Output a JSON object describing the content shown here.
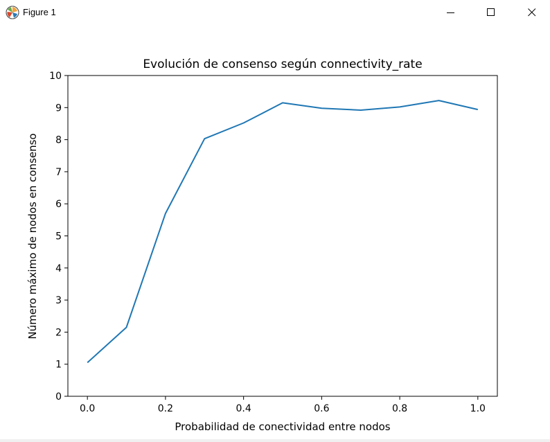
{
  "window": {
    "title": "Figure 1",
    "icons": {
      "app": "matplotlib-icon",
      "minimize": "minimize-icon",
      "maximize": "maximize-icon",
      "close": "close-icon"
    }
  },
  "chart_data": {
    "type": "line",
    "title": "Evolución de consenso según connectivity_rate",
    "xlabel": "Probabilidad de conectividad entre nodos",
    "ylabel": "Número máximo de nodos en consenso",
    "xlim": [
      -0.05,
      1.05
    ],
    "ylim": [
      0,
      10
    ],
    "x_ticks": [
      "0.0",
      "0.2",
      "0.4",
      "0.6",
      "0.8",
      "1.0"
    ],
    "y_ticks": [
      "0",
      "1",
      "2",
      "3",
      "4",
      "5",
      "6",
      "7",
      "8",
      "9",
      "10"
    ],
    "grid": false,
    "series": [
      {
        "color": "#1f77b4",
        "x": [
          0.0,
          0.1,
          0.2,
          0.3,
          0.4,
          0.5,
          0.6,
          0.7,
          0.8,
          0.9,
          1.0
        ],
        "y": [
          1.05,
          2.15,
          5.7,
          8.03,
          8.52,
          9.15,
          8.98,
          8.92,
          9.02,
          9.22,
          8.94
        ]
      }
    ]
  }
}
